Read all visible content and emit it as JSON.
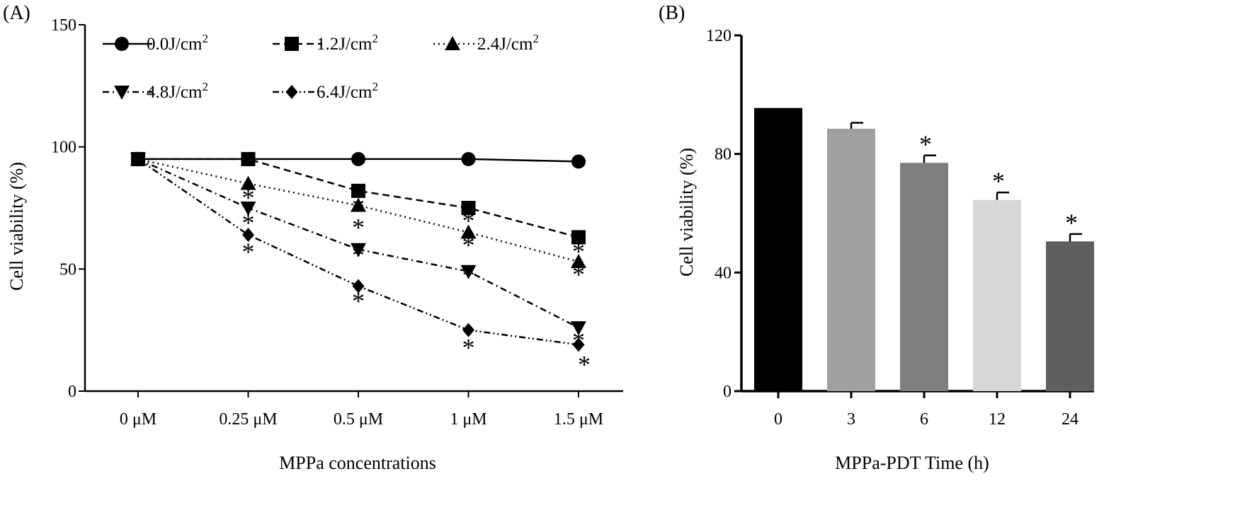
{
  "chart_data": [
    {
      "type": "line",
      "panel_label": "(A)",
      "title": "",
      "xlabel": "MPPa concentrations",
      "ylabel": "Cell viability (%)",
      "categories": [
        "0 μM",
        "0.25 μM",
        "0.5 μM",
        "1 μM",
        "1.5 μM"
      ],
      "ylim": [
        0,
        150
      ],
      "yticks": [
        "0",
        "50",
        "100",
        "150"
      ],
      "legend_position": "top",
      "series": [
        {
          "name": "0.0J/cm",
          "sup": "2",
          "marker": "circle",
          "dash": "solid",
          "values": [
            95,
            95,
            95,
            95,
            94
          ],
          "significant": [
            false,
            false,
            false,
            false,
            false
          ]
        },
        {
          "name": "1.2J/cm",
          "sup": "2",
          "marker": "square",
          "dash": "dashed",
          "values": [
            95,
            95,
            82,
            75,
            63
          ],
          "significant": [
            false,
            false,
            true,
            true,
            true
          ]
        },
        {
          "name": "2.4J/cm",
          "sup": "2",
          "marker": "triangle-up",
          "dash": "dotted",
          "values": [
            95,
            85,
            76,
            65,
            53
          ],
          "significant": [
            false,
            true,
            true,
            true,
            true
          ]
        },
        {
          "name": "4.8J/cm",
          "sup": "2",
          "marker": "triangle-down",
          "dash": "dash-dot",
          "values": [
            95,
            75,
            58,
            49,
            26
          ],
          "significant": [
            false,
            true,
            true,
            true,
            true
          ]
        },
        {
          "name": "6.4J/cm",
          "sup": "2",
          "marker": "diamond",
          "dash": "dash-dot-dot",
          "values": [
            95,
            64,
            43,
            25,
            19
          ],
          "significant": [
            false,
            true,
            true,
            true,
            true
          ]
        }
      ],
      "significance_marker": "*"
    },
    {
      "type": "bar",
      "panel_label": "(B)",
      "title": "",
      "xlabel": "MPPa-PDT  Time (h)",
      "ylabel": "Cell viability (%)",
      "categories": [
        "0",
        "3",
        "6",
        "12",
        "24"
      ],
      "values": [
        95.5,
        88.5,
        77,
        64.5,
        50.5
      ],
      "errors": [
        0,
        2,
        2.5,
        2.5,
        2.5
      ],
      "colors": [
        "#000000",
        "#a0a0a2",
        "#7f7f7f",
        "#d7d7d7",
        "#5f5f5f"
      ],
      "significant": [
        false,
        false,
        true,
        true,
        true
      ],
      "ylim": [
        0,
        120
      ],
      "yticks": [
        "0",
        "40",
        "80",
        "120"
      ],
      "significance_marker": "*"
    }
  ]
}
